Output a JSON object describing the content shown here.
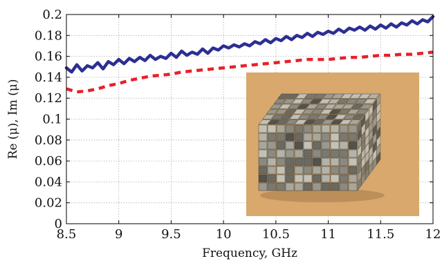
{
  "chart_data": {
    "type": "line",
    "xlabel": "Frequency, GHz",
    "ylabel": "Re (μ), Im (μ)",
    "xlim": [
      8.5,
      12
    ],
    "ylim": [
      0,
      0.2
    ],
    "x_ticks": [
      8.5,
      9,
      9.5,
      10,
      10.5,
      11,
      11.5,
      12
    ],
    "y_ticks": [
      0,
      0.02,
      0.04,
      0.06,
      0.08,
      0.1,
      0.12,
      0.14,
      0.16,
      0.18,
      0.2
    ],
    "x_tick_labels": [
      "8.5",
      "9",
      "9.5",
      "10",
      "10.5",
      "11",
      "11.5",
      "12"
    ],
    "y_tick_labels": [
      "0",
      "0.02",
      "0.04",
      "0.06",
      "0.08",
      "0.1",
      "0.12",
      "0.14",
      "0.16",
      "0.18",
      "0.2"
    ],
    "grid": true,
    "series": [
      {
        "color": "#2b2f93",
        "style": "solid",
        "x": [
          8.5,
          8.55,
          8.6,
          8.65,
          8.7,
          8.75,
          8.8,
          8.85,
          8.9,
          8.95,
          9.0,
          9.05,
          9.1,
          9.15,
          9.2,
          9.25,
          9.3,
          9.35,
          9.4,
          9.45,
          9.5,
          9.55,
          9.6,
          9.65,
          9.7,
          9.75,
          9.8,
          9.85,
          9.9,
          9.95,
          10.0,
          10.05,
          10.1,
          10.15,
          10.2,
          10.25,
          10.3,
          10.35,
          10.4,
          10.45,
          10.5,
          10.55,
          10.6,
          10.65,
          10.7,
          10.75,
          10.8,
          10.85,
          10.9,
          10.95,
          11.0,
          11.05,
          11.1,
          11.15,
          11.2,
          11.25,
          11.3,
          11.35,
          11.4,
          11.45,
          11.5,
          11.55,
          11.6,
          11.65,
          11.7,
          11.75,
          11.8,
          11.85,
          11.9,
          11.95,
          12.0
        ],
        "values": [
          0.149,
          0.145,
          0.152,
          0.146,
          0.151,
          0.149,
          0.154,
          0.148,
          0.155,
          0.152,
          0.157,
          0.153,
          0.158,
          0.155,
          0.159,
          0.156,
          0.161,
          0.157,
          0.16,
          0.158,
          0.163,
          0.159,
          0.165,
          0.161,
          0.164,
          0.162,
          0.167,
          0.163,
          0.168,
          0.166,
          0.17,
          0.168,
          0.171,
          0.169,
          0.172,
          0.17,
          0.174,
          0.172,
          0.176,
          0.173,
          0.177,
          0.175,
          0.179,
          0.176,
          0.18,
          0.178,
          0.182,
          0.179,
          0.183,
          0.181,
          0.184,
          0.182,
          0.186,
          0.183,
          0.187,
          0.185,
          0.188,
          0.185,
          0.189,
          0.186,
          0.19,
          0.187,
          0.191,
          0.188,
          0.192,
          0.19,
          0.194,
          0.191,
          0.195,
          0.193,
          0.198
        ]
      },
      {
        "color": "#e8202a",
        "style": "dashed",
        "x": [
          8.5,
          8.6,
          8.7,
          8.8,
          8.9,
          9.0,
          9.1,
          9.2,
          9.3,
          9.4,
          9.5,
          9.6,
          9.7,
          9.8,
          9.9,
          10.0,
          10.1,
          10.2,
          10.3,
          10.4,
          10.5,
          10.6,
          10.7,
          10.8,
          10.9,
          11.0,
          11.1,
          11.2,
          11.3,
          11.4,
          11.5,
          11.6,
          11.7,
          11.8,
          11.9,
          12.0
        ],
        "values": [
          0.129,
          0.126,
          0.127,
          0.129,
          0.132,
          0.134,
          0.137,
          0.139,
          0.141,
          0.142,
          0.143,
          0.145,
          0.146,
          0.147,
          0.148,
          0.149,
          0.15,
          0.151,
          0.152,
          0.153,
          0.154,
          0.155,
          0.156,
          0.157,
          0.157,
          0.157,
          0.158,
          0.159,
          0.159,
          0.16,
          0.161,
          0.161,
          0.162,
          0.162,
          0.163,
          0.164
        ]
      }
    ],
    "axis_color": "#000000",
    "grid_color": "#9a9a9a"
  },
  "inset_photo": {
    "background_color": "#d8a86c",
    "block_colors": [
      "#6b6a62",
      "#8c8a80",
      "#a9a79c",
      "#c3c1b6",
      "#54524b",
      "#7b796f",
      "#b5b3a8",
      "#9a988d"
    ]
  }
}
